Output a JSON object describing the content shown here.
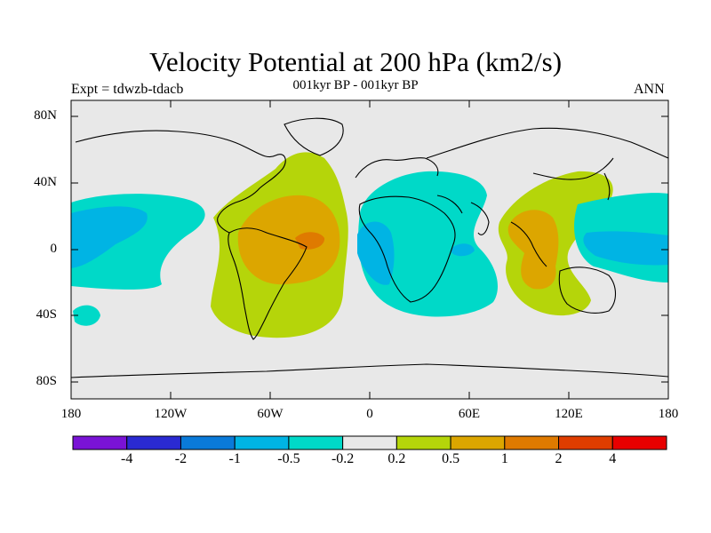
{
  "title": "Velocity Potential at 200 hPa (km2/s)",
  "subtitle": "001kyr BP - 001kyr BP",
  "experiment": "Expt = tdwzb-tdacb",
  "season": "ANN",
  "axes": {
    "y_ticks": [
      "80N",
      "40N",
      "0",
      "40S",
      "80S"
    ],
    "x_ticks": [
      "180",
      "120W",
      "60W",
      "0",
      "60E",
      "120E",
      "180"
    ]
  },
  "colorbar": {
    "labels": [
      "-4",
      "-2",
      "-1",
      "-0.5",
      "-0.2",
      "0.2",
      "0.5",
      "1",
      "2",
      "4"
    ],
    "colors": [
      "#7a13d6",
      "#2a2ad2",
      "#0a7ad9",
      "#00b4e4",
      "#00d9c8",
      "#e8e8e8",
      "#b5d50a",
      "#dca600",
      "#df7a00",
      "#df3d00",
      "#e80000"
    ]
  }
}
